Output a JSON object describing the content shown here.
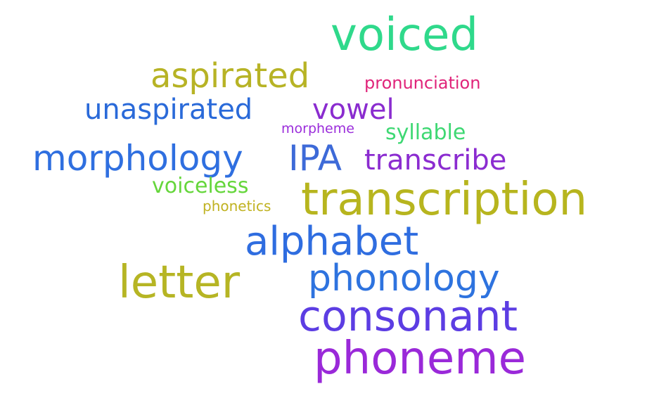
{
  "words": {
    "voiced": {
      "text": "voiced",
      "color": "#2fd98b"
    },
    "aspirated": {
      "text": "aspirated",
      "color": "#b7b325"
    },
    "pronunciation": {
      "text": "pronunciation",
      "color": "#e0247a"
    },
    "unaspirated": {
      "text": "unaspirated",
      "color": "#2a6ad9"
    },
    "vowel": {
      "text": "vowel",
      "color": "#8a2ccf"
    },
    "morpheme": {
      "text": "morpheme",
      "color": "#9b2ddb"
    },
    "syllable": {
      "text": "syllable",
      "color": "#3ed873"
    },
    "morphology": {
      "text": "morphology",
      "color": "#2f6fe0"
    },
    "ipa": {
      "text": "IPA",
      "color": "#3d6ad8"
    },
    "transcribe": {
      "text": "transcribe",
      "color": "#8b2cd0"
    },
    "voiceless": {
      "text": "voiceless",
      "color": "#65d63b"
    },
    "phonetics": {
      "text": "phonetics",
      "color": "#c0b221"
    },
    "transcription": {
      "text": "transcription",
      "color": "#b7b51e"
    },
    "alphabet": {
      "text": "alphabet",
      "color": "#2f6de0"
    },
    "letter": {
      "text": "letter",
      "color": "#b6b524"
    },
    "phonology": {
      "text": "phonology",
      "color": "#2e73df"
    },
    "consonant": {
      "text": "consonant",
      "color": "#5c3de3"
    },
    "phoneme": {
      "text": "phoneme",
      "color": "#9a29d9"
    }
  }
}
